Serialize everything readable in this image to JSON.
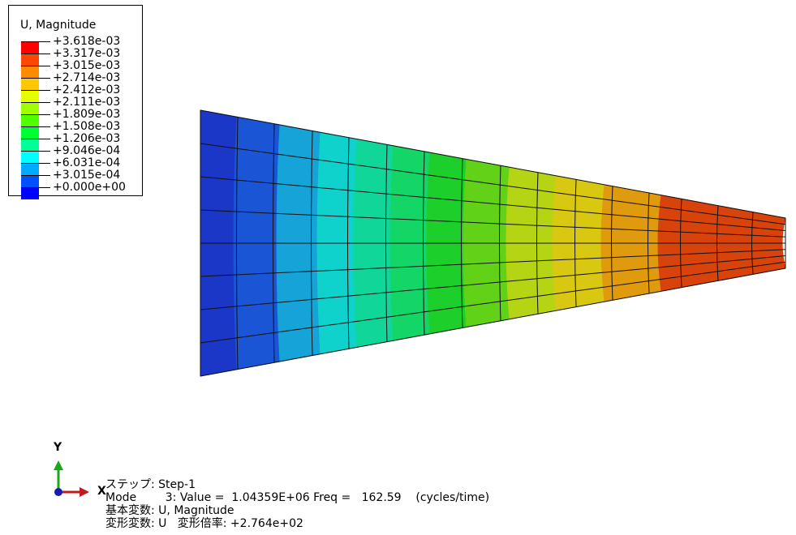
{
  "legend": {
    "title": "U, Magnitude",
    "labels": [
      "+3.618e-03",
      "+3.317e-03",
      "+3.015e-03",
      "+2.714e-03",
      "+2.412e-03",
      "+2.111e-03",
      "+1.809e-03",
      "+1.508e-03",
      "+1.206e-03",
      "+9.046e-04",
      "+6.031e-04",
      "+3.015e-04",
      "+0.000e+00"
    ],
    "colors": [
      "#ff0000",
      "#ff4600",
      "#ff8c00",
      "#ffc800",
      "#e6ff00",
      "#a0ff00",
      "#50ff00",
      "#00ff32",
      "#00ff96",
      "#00ffff",
      "#00aaff",
      "#0050ff",
      "#0000ff"
    ]
  },
  "model": {
    "contour_colors": [
      "#1a37c7",
      "#1a55d6",
      "#15a3d8",
      "#10d2cc",
      "#10d699",
      "#13d667",
      "#1dcf2a",
      "#62d218",
      "#b5d414",
      "#d8c812",
      "#e09a0d",
      "#e0690b",
      "#d8420b",
      "#d81a0b",
      "#e0080b"
    ]
  },
  "triad": {
    "y_label": "Y",
    "x_label": "X"
  },
  "info": {
    "step": "ステップ: Step-1",
    "mode": "Mode        3: Value =  1.04359E+06 Freq =   162.59    (cycles/time)",
    "primary_var": "基本変数: U, Magnitude",
    "deformed_var": "変形変数: U   変形倍率: +2.764e+02"
  }
}
